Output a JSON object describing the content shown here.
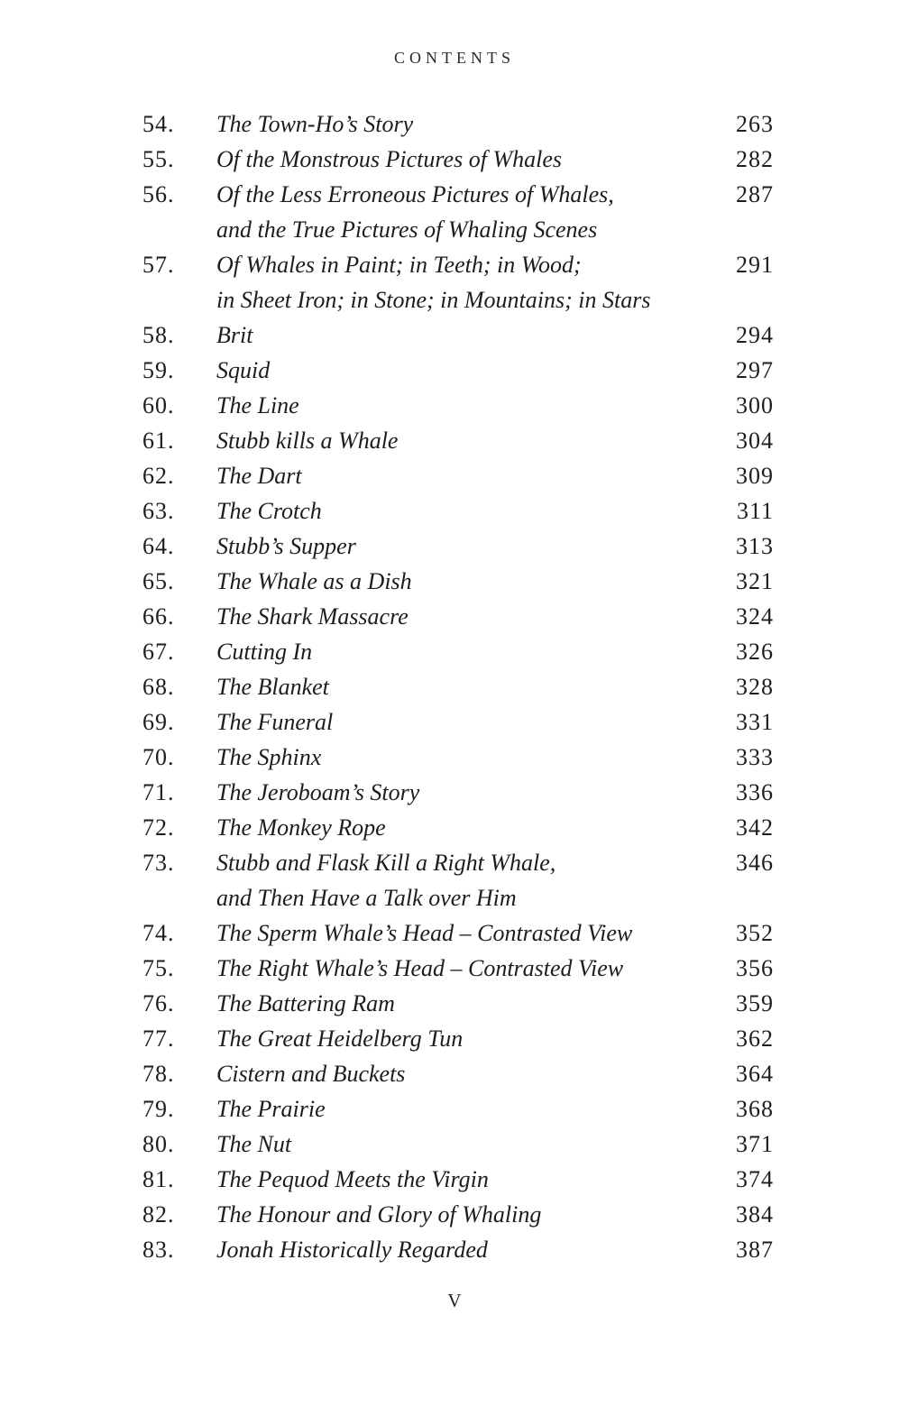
{
  "page": {
    "header": "CONTENTS",
    "folio": "V"
  },
  "toc": {
    "entries": [
      {
        "num": "54.",
        "lines": [
          "The Town-Ho’s Story"
        ],
        "page": "263"
      },
      {
        "num": "55.",
        "lines": [
          "Of the Monstrous Pictures of Whales"
        ],
        "page": "282"
      },
      {
        "num": "56.",
        "lines": [
          "Of the Less Erroneous Pictures of Whales,",
          "and the True Pictures of Whaling Scenes"
        ],
        "page": "287"
      },
      {
        "num": "57.",
        "lines": [
          "Of Whales in Paint; in Teeth; in Wood;",
          "in Sheet Iron; in Stone; in Mountains; in Stars"
        ],
        "page": "291"
      },
      {
        "num": "58.",
        "lines": [
          "Brit"
        ],
        "page": "294"
      },
      {
        "num": "59.",
        "lines": [
          "Squid"
        ],
        "page": "297"
      },
      {
        "num": "60.",
        "lines": [
          "The Line"
        ],
        "page": "300"
      },
      {
        "num": "61.",
        "lines": [
          "Stubb kills a Whale"
        ],
        "page": "304"
      },
      {
        "num": "62.",
        "lines": [
          "The Dart"
        ],
        "page": "309"
      },
      {
        "num": "63.",
        "lines": [
          "The Crotch"
        ],
        "page": "311"
      },
      {
        "num": "64.",
        "lines": [
          "Stubb’s Supper"
        ],
        "page": "313"
      },
      {
        "num": "65.",
        "lines": [
          "The Whale as a Dish"
        ],
        "page": "321"
      },
      {
        "num": "66.",
        "lines": [
          "The Shark Massacre"
        ],
        "page": "324"
      },
      {
        "num": "67.",
        "lines": [
          "Cutting In"
        ],
        "page": "326"
      },
      {
        "num": "68.",
        "lines": [
          "The Blanket"
        ],
        "page": "328"
      },
      {
        "num": "69.",
        "lines": [
          "The Funeral"
        ],
        "page": "331"
      },
      {
        "num": "70.",
        "lines": [
          "The Sphinx"
        ],
        "page": "333"
      },
      {
        "num": "71.",
        "lines": [
          "The Jeroboam’s Story"
        ],
        "page": "336"
      },
      {
        "num": "72.",
        "lines": [
          "The Monkey Rope"
        ],
        "page": "342"
      },
      {
        "num": "73.",
        "lines": [
          "Stubb and Flask Kill a Right Whale,",
          "and Then Have a Talk over Him"
        ],
        "page": "346"
      },
      {
        "num": "74.",
        "lines": [
          "The Sperm Whale’s Head – Contrasted View"
        ],
        "page": "352"
      },
      {
        "num": "75.",
        "lines": [
          "The Right Whale’s Head – Contrasted View"
        ],
        "page": "356"
      },
      {
        "num": "76.",
        "lines": [
          "The Battering Ram"
        ],
        "page": "359"
      },
      {
        "num": "77.",
        "lines": [
          "The Great Heidelberg Tun"
        ],
        "page": "362"
      },
      {
        "num": "78.",
        "lines": [
          "Cistern and Buckets"
        ],
        "page": "364"
      },
      {
        "num": "79.",
        "lines": [
          "The Prairie"
        ],
        "page": "368"
      },
      {
        "num": "80.",
        "lines": [
          "The Nut"
        ],
        "page": "371"
      },
      {
        "num": "81.",
        "lines": [
          "The Pequod Meets the Virgin"
        ],
        "page": "374"
      },
      {
        "num": "82.",
        "lines": [
          "The Honour and Glory of Whaling"
        ],
        "page": "384"
      },
      {
        "num": "83.",
        "lines": [
          "Jonah Historically Regarded"
        ],
        "page": "387"
      }
    ]
  }
}
